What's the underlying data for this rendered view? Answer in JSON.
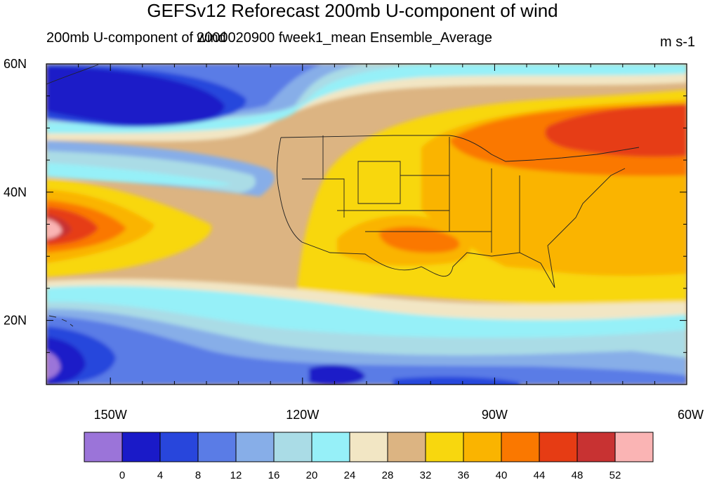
{
  "title": "GEFSv12 Reforecast 200mb U-component of wind",
  "subtitle_left": "200mb U-component of wind",
  "subtitle_center": "2000020900 fweek1_mean Ensemble_Average",
  "units": "m s-1",
  "map": {
    "lon_range": [
      -160,
      -60
    ],
    "lat_range": [
      10,
      60
    ],
    "lon_ticks": [
      {
        "lon": -150,
        "label": "150W"
      },
      {
        "lon": -120,
        "label": "120W"
      },
      {
        "lon": -90,
        "label": "90W"
      },
      {
        "lon": -60,
        "label": "60W"
      }
    ],
    "lat_ticks": [
      {
        "lat": 60,
        "label": "60N"
      },
      {
        "lat": 40,
        "label": "40N"
      },
      {
        "lat": 20,
        "label": "20N"
      }
    ]
  },
  "colorbar": {
    "levels": [
      "0",
      "4",
      "8",
      "12",
      "16",
      "20",
      "24",
      "28",
      "32",
      "36",
      "40",
      "44",
      "48",
      "52"
    ],
    "colors": [
      "#9b74d9",
      "#1a1ac8",
      "#2846dc",
      "#5a7ce6",
      "#87aee8",
      "#aadce6",
      "#96f0f8",
      "#f2e6c4",
      "#dcb482",
      "#f8d70e",
      "#fab400",
      "#fa7800",
      "#e63c14",
      "#c83232",
      "#fab4b4"
    ]
  }
}
